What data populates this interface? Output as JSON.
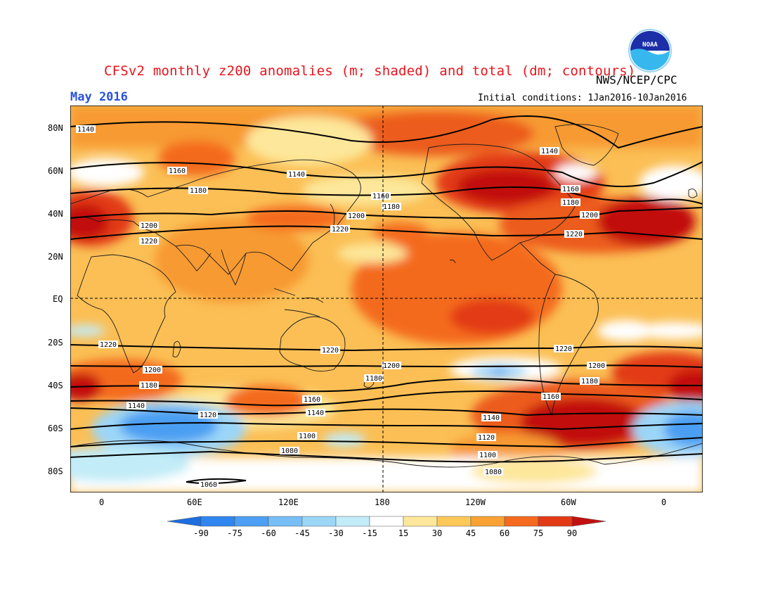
{
  "header": {
    "title": "CFSv2 monthly z200 anomalies (m; shaded) and total (dm; contours)",
    "valid_month": "May 2016",
    "agency": "NWS/NCEP/CPC",
    "initial_conditions": "Initial conditions: 1Jan2016-10Jan2016",
    "logo_text": "NOAA"
  },
  "axes": {
    "lat_labels": [
      "80N",
      "60N",
      "40N",
      "20N",
      "EQ",
      "20S",
      "40S",
      "60S",
      "80S"
    ],
    "lon_labels": [
      "0",
      "60E",
      "120E",
      "180",
      "120W",
      "60W",
      "0"
    ]
  },
  "colorbar": {
    "ticks": [
      "-90",
      "-75",
      "-60",
      "-45",
      "-30",
      "-15",
      "15",
      "30",
      "45",
      "60",
      "75",
      "90"
    ],
    "colors": [
      "#1e6ee0",
      "#2f86ee",
      "#4c9ff2",
      "#77bdf6",
      "#9bd6f8",
      "#c2ecf8",
      "#ffffff",
      "#fde79a",
      "#fcc85a",
      "#f9a233",
      "#f46a1e",
      "#e23a14",
      "#c21010"
    ]
  },
  "contours": {
    "nh_labels": [
      "1140",
      "1160",
      "1180",
      "1200",
      "1220"
    ],
    "sh_labels": [
      "1220",
      "1200",
      "1180",
      "1160",
      "1140",
      "1120",
      "1100",
      "1080",
      "1060"
    ]
  },
  "colors": {
    "title": "#e8141c",
    "month": "#2a52d8",
    "ocean_base": "#fcc25a"
  }
}
